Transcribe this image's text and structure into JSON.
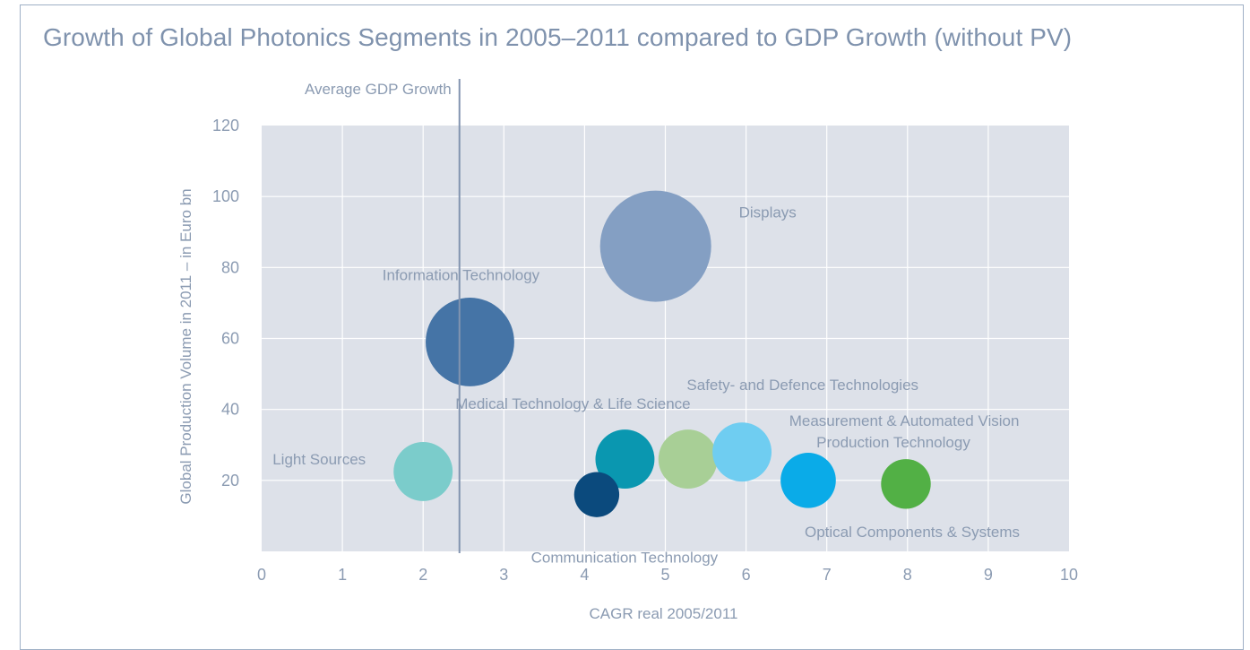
{
  "chart_data": {
    "type": "bubble",
    "title": "Growth of Global Photonics Segments in 2005–2011 compared to GDP Growth (without PV)",
    "xlabel": "CAGR real 2005/2011",
    "ylabel": "Global Production Volume in 2011 – in Euro bn",
    "xlim": [
      0,
      10
    ],
    "ylim": [
      0,
      120
    ],
    "x_ticks": [
      0,
      1,
      2,
      3,
      4,
      5,
      6,
      7,
      8,
      9,
      10
    ],
    "y_ticks": [
      20,
      40,
      60,
      80,
      100,
      120
    ],
    "grid": true,
    "reference_line": {
      "label": "Average GDP Growth",
      "x": 2.45
    },
    "series": [
      {
        "name": "Displays",
        "x": 4.88,
        "y": 86,
        "size": 85,
        "color": "#849fc3"
      },
      {
        "name": "Information Technology",
        "x": 2.58,
        "y": 59,
        "size": 54,
        "color": "#4574a6"
      },
      {
        "name": "Light Sources",
        "x": 2.0,
        "y": 22.5,
        "size": 24,
        "color": "#7bcccb"
      },
      {
        "name": "Medical Technology & Life Science",
        "x": 4.5,
        "y": 26,
        "size": 24,
        "color": "#0a97b0"
      },
      {
        "name": "Communication Technology",
        "x": 4.15,
        "y": 16,
        "size": 14,
        "color": "#0b4a7d"
      },
      {
        "name": "Safety- and Defence Technologies",
        "x": 5.28,
        "y": 26,
        "size": 24,
        "color": "#a8cf96"
      },
      {
        "name": "Measurement & Automated Vision",
        "x": 5.95,
        "y": 28,
        "size": 24,
        "color": "#6fcdf1"
      },
      {
        "name": "Production Technology",
        "x": 6.77,
        "y": 20,
        "size": 21,
        "color": "#0aabe8"
      },
      {
        "name": "Optical Components & Systems",
        "x": 7.98,
        "y": 19,
        "size": 17,
        "color": "#52b045"
      }
    ],
    "colors": {
      "plot_bg": "#dde1e9",
      "grid": "#ffffff",
      "text": "#8b9bb2",
      "ref_line": "#8294b0"
    }
  }
}
